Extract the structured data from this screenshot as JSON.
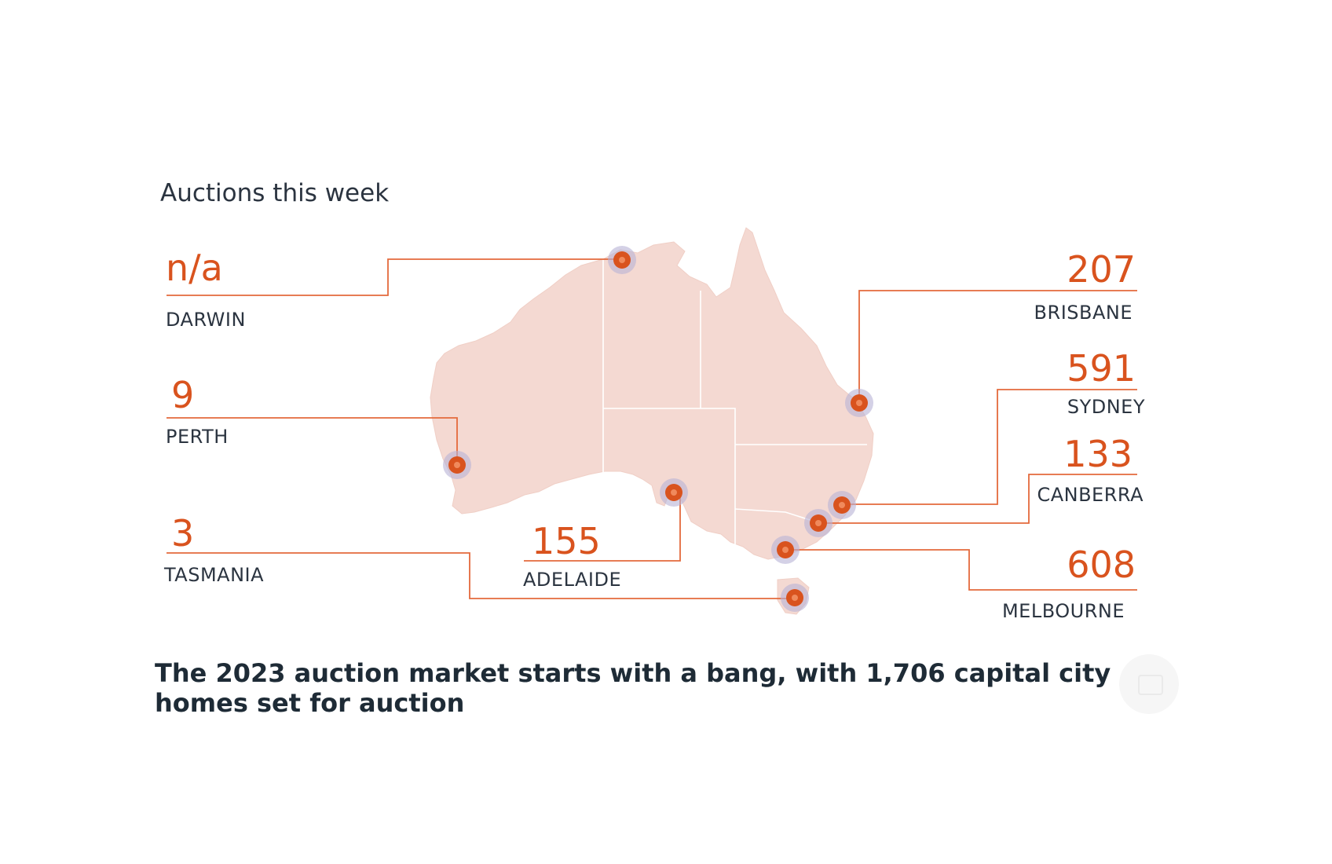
{
  "heading": "Auctions this week",
  "colors": {
    "accent": "#d9531e",
    "map_fill": "#f4d9d2",
    "marker_halo": "#b7b3d6",
    "text_dark": "#2b3440"
  },
  "cities": [
    {
      "id": "darwin",
      "count": "n/a",
      "name": "DARWIN"
    },
    {
      "id": "perth",
      "count": "9",
      "name": "PERTH"
    },
    {
      "id": "tasmania",
      "count": "3",
      "name": "TASMANIA"
    },
    {
      "id": "adelaide",
      "count": "155",
      "name": "ADELAIDE"
    },
    {
      "id": "brisbane",
      "count": "207",
      "name": "BRISBANE"
    },
    {
      "id": "sydney",
      "count": "591",
      "name": "SYDNEY"
    },
    {
      "id": "canberra",
      "count": "133",
      "name": "CANBERRA"
    },
    {
      "id": "melbourne",
      "count": "608",
      "name": "MELBOURNE"
    }
  ],
  "headline": "The 2023 auction market starts with a bang, with 1,706 capital city homes set for auction",
  "badge_icon": "watermark-icon"
}
